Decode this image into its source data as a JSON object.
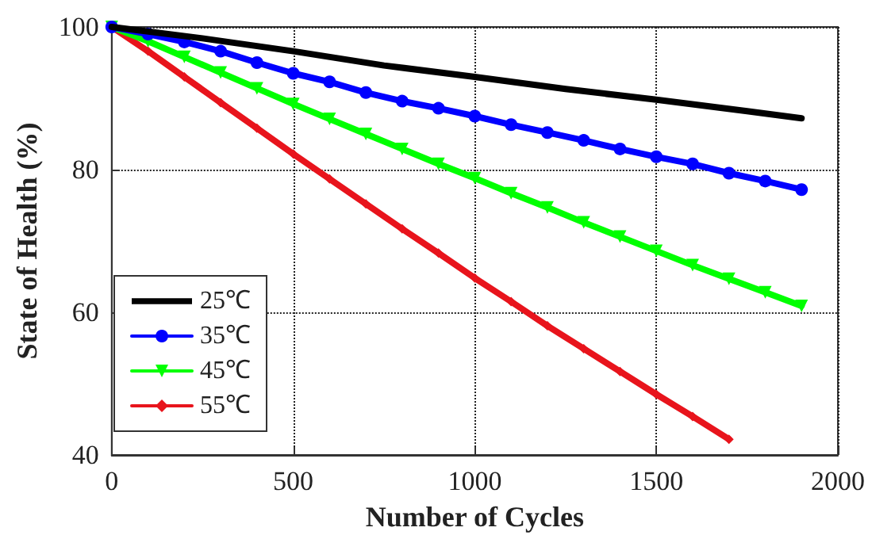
{
  "chart_data": {
    "type": "line",
    "xlabel": "Number of Cycles",
    "ylabel": "State of Health (%)",
    "xlim": [
      0,
      2000
    ],
    "xticks": [
      0,
      500,
      1000,
      1500,
      2000
    ],
    "ylim": [
      40,
      100
    ],
    "yticks": [
      40,
      60,
      80,
      100
    ],
    "grid": true,
    "legend": "bottom left",
    "line_style": "solid",
    "series": [
      {
        "name": "25℃",
        "color": "#000000",
        "marker": "none",
        "x": [
          0,
          250,
          500,
          750,
          1000,
          1250,
          1500,
          1750,
          1900
        ],
        "values": [
          100,
          98.4,
          96.6,
          94.6,
          93.0,
          91.3,
          89.8,
          88.2,
          87.2
        ]
      },
      {
        "name": "35℃",
        "color": "#0000ff",
        "marker": "circle",
        "x": [
          0,
          100,
          200,
          300,
          400,
          500,
          600,
          700,
          800,
          900,
          1000,
          1100,
          1200,
          1300,
          1400,
          1500,
          1600,
          1700,
          1800,
          1900
        ],
        "values": [
          100,
          99.0,
          97.9,
          96.6,
          95.0,
          93.5,
          92.3,
          90.8,
          89.6,
          88.6,
          87.5,
          86.3,
          85.2,
          84.1,
          82.9,
          81.8,
          80.8,
          79.5,
          78.4,
          77.2
        ]
      },
      {
        "name": "45℃",
        "color": "#00ff00",
        "marker": "triangle",
        "x": [
          0,
          100,
          200,
          300,
          400,
          500,
          600,
          700,
          800,
          900,
          1000,
          1100,
          1200,
          1300,
          1400,
          1500,
          1600,
          1700,
          1800,
          1900
        ],
        "values": [
          100,
          98.0,
          95.8,
          93.6,
          91.4,
          89.2,
          87.1,
          85.0,
          82.9,
          80.8,
          78.8,
          76.7,
          74.7,
          72.6,
          70.6,
          68.6,
          66.6,
          64.7,
          62.8,
          60.9
        ]
      },
      {
        "name": "55℃",
        "color": "#e8141c",
        "marker": "diamond",
        "x": [
          0,
          100,
          200,
          300,
          400,
          500,
          600,
          700,
          800,
          900,
          1000,
          1100,
          1200,
          1300,
          1400,
          1500,
          1600,
          1700
        ],
        "values": [
          100,
          96.6,
          93.0,
          89.4,
          85.8,
          82.2,
          78.7,
          75.2,
          71.7,
          68.3,
          64.8,
          61.5,
          58.1,
          54.9,
          51.7,
          48.5,
          45.4,
          42.2
        ]
      }
    ]
  }
}
